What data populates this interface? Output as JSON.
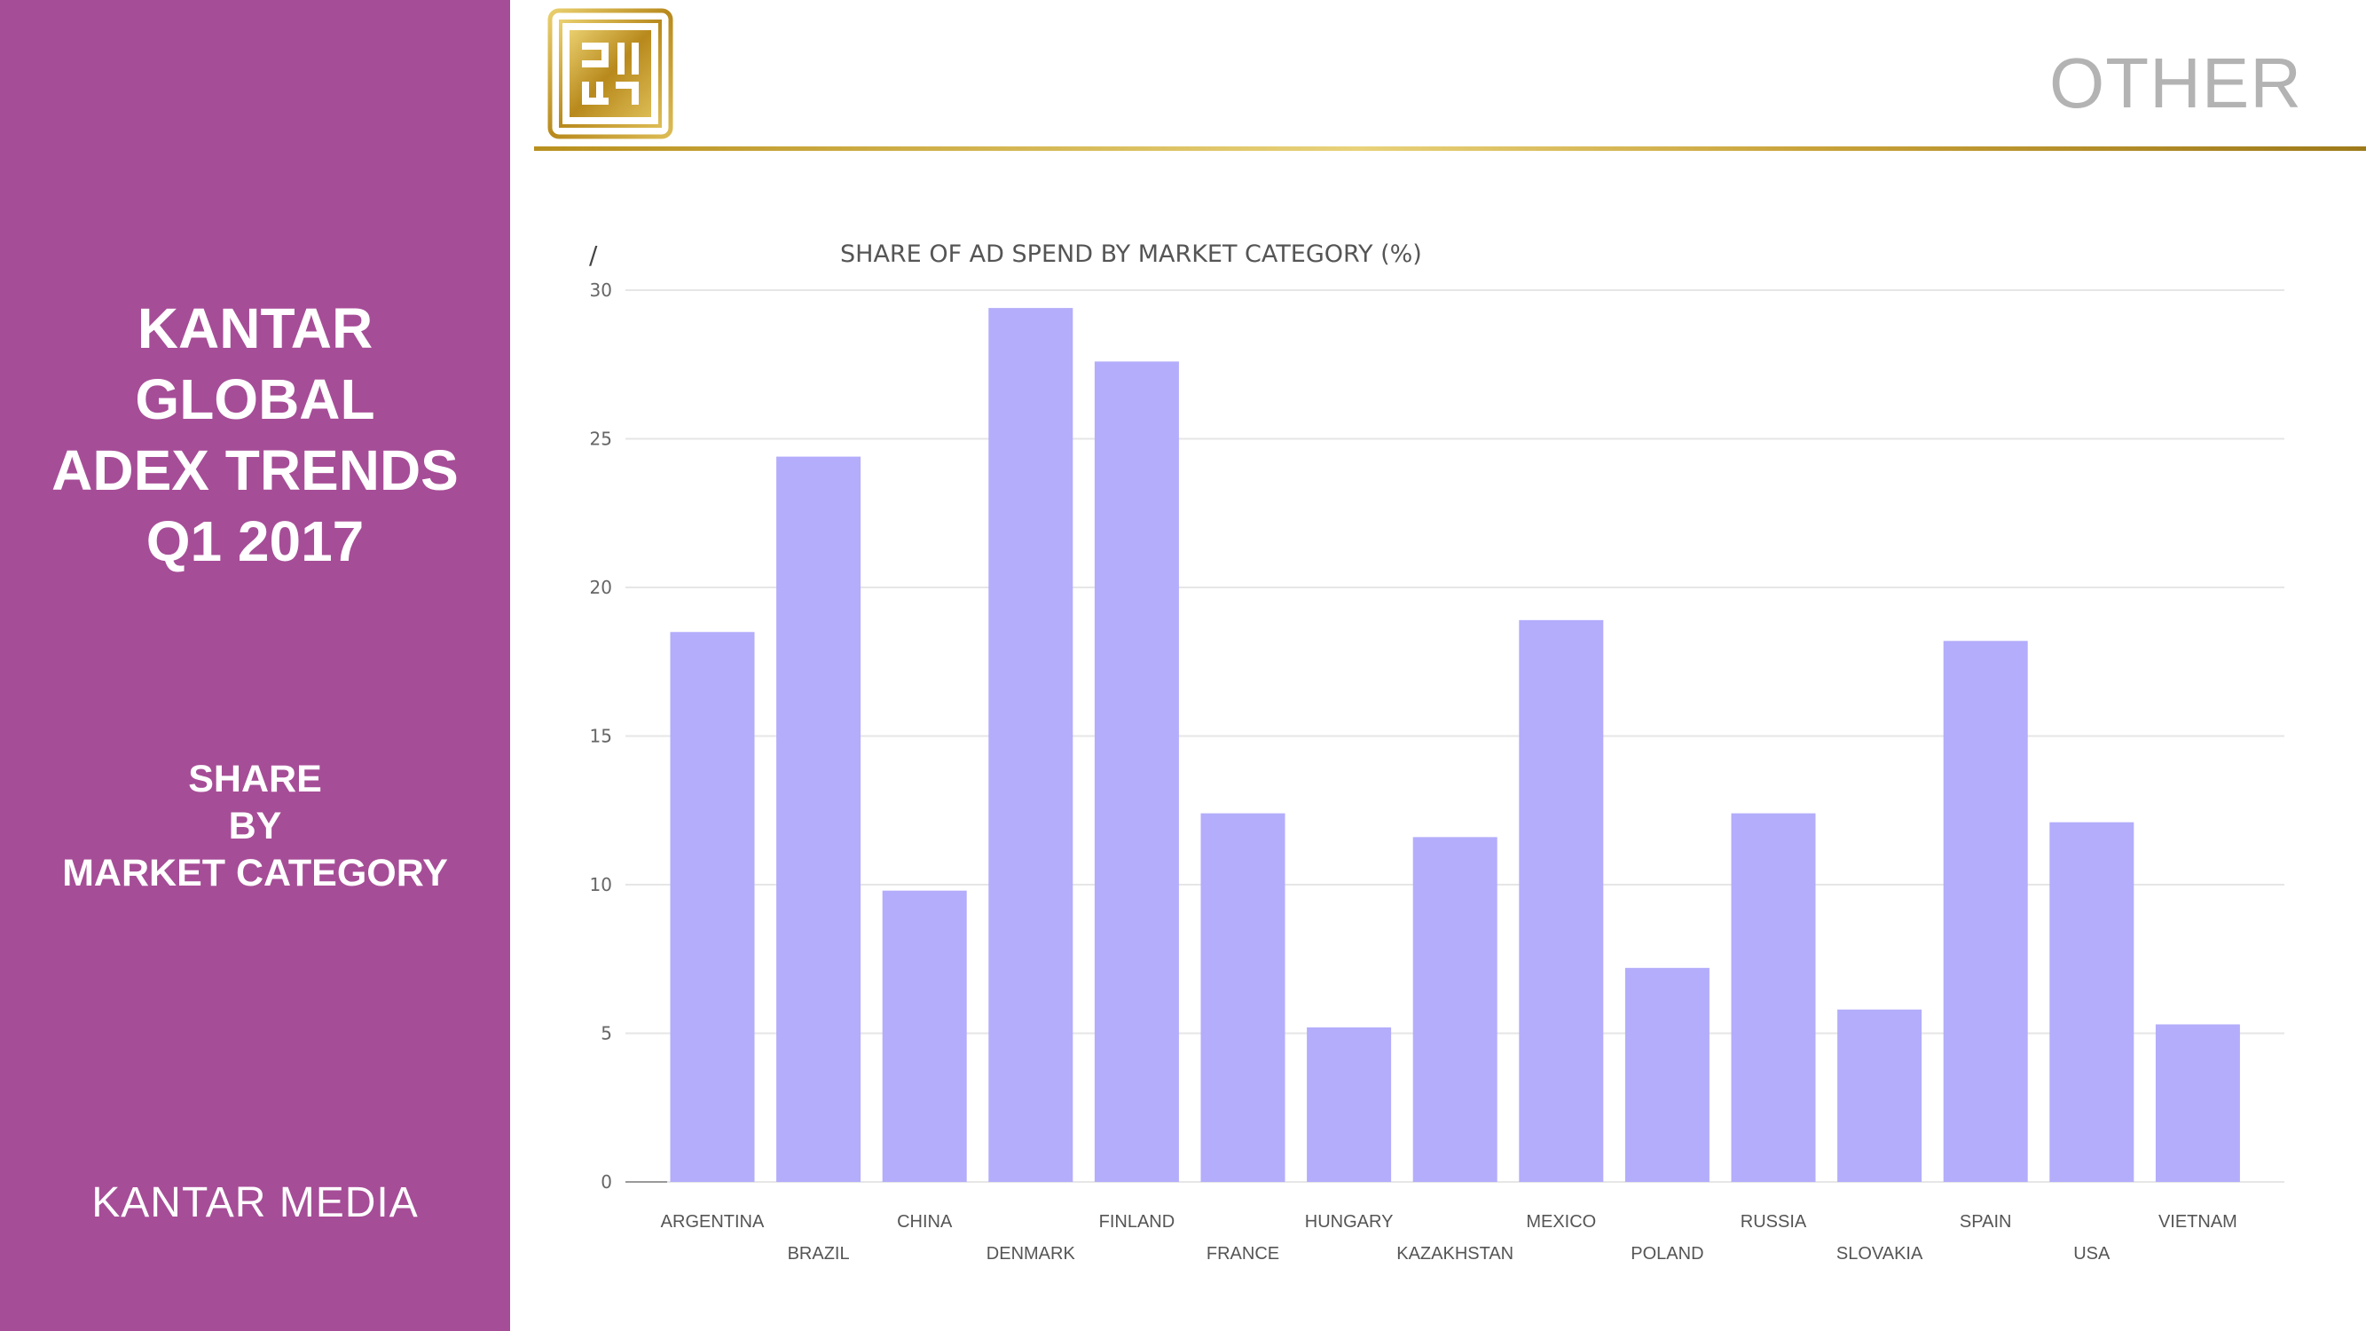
{
  "sidebar": {
    "title_lines": [
      "KANTAR",
      "GLOBAL",
      "ADEX TRENDS",
      "Q1 2017"
    ],
    "section_lines": [
      "SHARE",
      "BY",
      "MARKET CATEGORY"
    ],
    "brand": "KANTAR MEDIA"
  },
  "header": {
    "page_tag": "OTHER"
  },
  "colors": {
    "sidebar": "#a64d97",
    "bar": "#b3adfb",
    "accent_gold": "#c8a23a"
  },
  "chart_data": {
    "type": "bar",
    "title": "SHARE OF AD SPEND BY MARKET CATEGORY (%)",
    "corner_mark": "/",
    "categories": [
      "ARGENTINA",
      "BRAZIL",
      "CHINA",
      "DENMARK",
      "FINLAND",
      "FRANCE",
      "HUNGARY",
      "KAZAKHSTAN",
      "MEXICO",
      "POLAND",
      "RUSSIA",
      "SLOVAKIA",
      "SPAIN",
      "USA",
      "VIETNAM"
    ],
    "values": [
      18.5,
      24.4,
      9.8,
      29.4,
      27.6,
      12.4,
      5.2,
      11.6,
      18.9,
      7.2,
      12.4,
      5.8,
      18.2,
      12.1,
      5.3
    ],
    "ylim": [
      0,
      30
    ],
    "yticks": [
      0,
      5,
      10,
      15,
      20,
      25,
      30
    ],
    "grid": true,
    "xlabel": "",
    "ylabel": ""
  }
}
